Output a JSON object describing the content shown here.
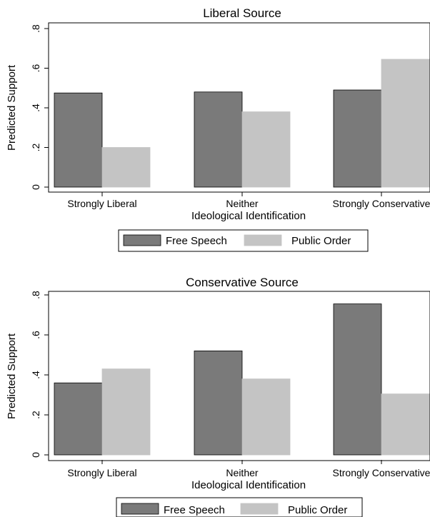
{
  "chart_data": [
    {
      "type": "bar",
      "title": "Liberal Source",
      "xlabel": "Ideological Identification",
      "ylabel": "Predicted Support",
      "categories": [
        "Strongly Liberal",
        "Neither",
        "Strongly Conservative"
      ],
      "series": [
        {
          "name": "Free Speech",
          "values": [
            0.475,
            0.48,
            0.49
          ],
          "color": "#7a7a7a"
        },
        {
          "name": "Public Order",
          "values": [
            0.2,
            0.38,
            0.645
          ],
          "color": "#c4c4c4"
        }
      ],
      "ylim": [
        0,
        0.8
      ],
      "yticks": [
        0,
        0.2,
        0.4,
        0.6,
        0.8
      ],
      "ytick_labels": [
        "0",
        ".2",
        ".4",
        ".6",
        ".8"
      ],
      "legend": [
        "Free Speech",
        "Public Order"
      ],
      "legend_position": "bottom",
      "grid": false
    },
    {
      "type": "bar",
      "title": "Conservative Source",
      "xlabel": "Ideological Identification",
      "ylabel": "Predicted Support",
      "categories": [
        "Strongly Liberal",
        "Neither",
        "Strongly Conservative"
      ],
      "series": [
        {
          "name": "Free Speech",
          "values": [
            0.36,
            0.52,
            0.755
          ],
          "color": "#7a7a7a"
        },
        {
          "name": "Public Order",
          "values": [
            0.43,
            0.38,
            0.305
          ],
          "color": "#c4c4c4"
        }
      ],
      "ylim": [
        0,
        0.8
      ],
      "yticks": [
        0,
        0.2,
        0.4,
        0.6,
        0.8
      ],
      "ytick_labels": [
        "0",
        ".2",
        ".4",
        ".6",
        ".8"
      ],
      "legend": [
        "Free Speech",
        "Public Order"
      ],
      "legend_position": "bottom",
      "grid": false
    }
  ]
}
